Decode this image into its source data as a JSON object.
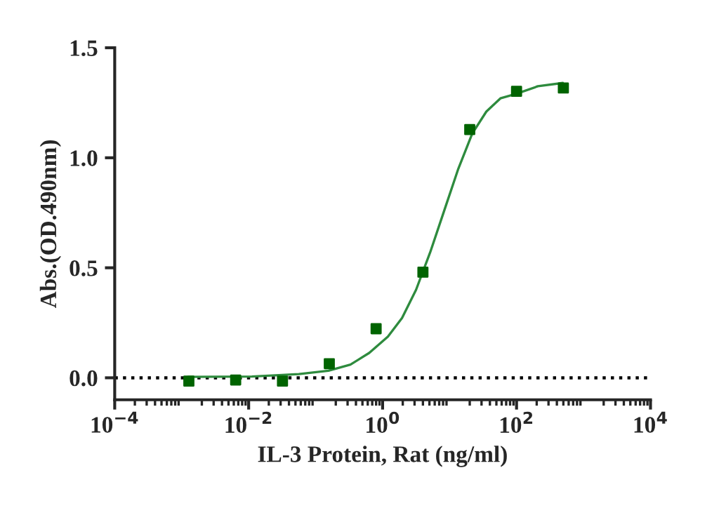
{
  "chart_data": {
    "type": "scatter",
    "xlabel": "IL-3 Protein, Rat (ng/ml)",
    "ylabel": "Abs.(OD.490nm)",
    "log": "x",
    "grid": false,
    "legend": false,
    "marker": "square",
    "xlim": [
      0.0001,
      10000
    ],
    "xticks": [
      {
        "value": 0.0001,
        "label": "10$^{−4}$"
      },
      {
        "value": 0.01,
        "label": "10$^{−2}$"
      },
      {
        "value": 1,
        "label": "10$^{0}$"
      },
      {
        "value": 100,
        "label": "10$^{2}$"
      },
      {
        "value": 10000,
        "label": "10$^{4}$"
      }
    ],
    "ylim": [
      -0.1,
      1.5
    ],
    "yticks": [
      {
        "value": 0,
        "label": "0.0"
      },
      {
        "value": 0.5,
        "label": "0.5"
      },
      {
        "value": 1,
        "label": "1.0"
      },
      {
        "value": 1.5,
        "label": "1.5"
      }
    ],
    "ref_lines": [
      {
        "axis": "y",
        "value": 0,
        "color": "#000000",
        "line_style": "dotted"
      }
    ],
    "series": [
      {
        "color": "#006400",
        "x": [
          0.00128,
          0.0064,
          0.032,
          0.16,
          0.8,
          4,
          20,
          100,
          500
        ],
        "values": [
          -0.015,
          -0.01,
          -0.015,
          0.064,
          0.223,
          0.48,
          1.128,
          1.302,
          1.317
        ]
      },
      {
        "type": "line",
        "color": "#2e8b3e",
        "marker": "none",
        "line_style": "solid",
        "x": [
          0.00124,
          0.0112,
          0.0562,
          0.155,
          0.331,
          0.631,
          1.2,
          1.95,
          3.16,
          5.13,
          8.32,
          13.5,
          21.8,
          35.4,
          57.4,
          97.7,
          208,
          490
        ],
        "values": [
          0.004,
          0.006,
          0.017,
          0.032,
          0.06,
          0.113,
          0.187,
          0.272,
          0.4,
          0.57,
          0.76,
          0.95,
          1.11,
          1.21,
          1.27,
          1.29,
          1.325,
          1.34
        ]
      }
    ]
  }
}
